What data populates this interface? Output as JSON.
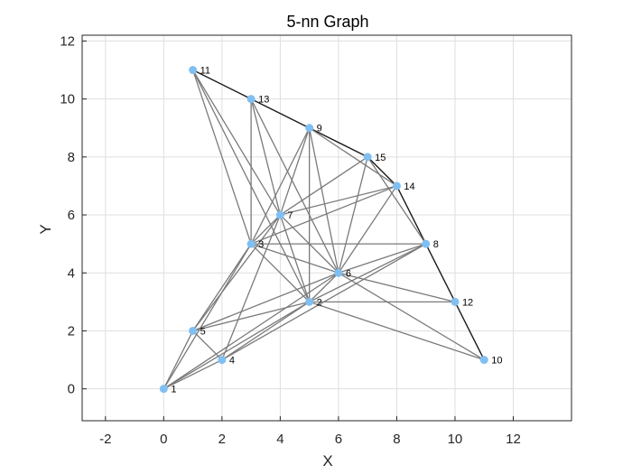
{
  "chart_data": {
    "type": "graph",
    "title": "5-nn Graph",
    "xlabel": "X",
    "ylabel": "Y",
    "xlim": [
      -2.8,
      14
    ],
    "ylim": [
      -1.1,
      12.2
    ],
    "xticks": [
      -2,
      0,
      2,
      4,
      6,
      8,
      10,
      12
    ],
    "yticks": [
      0,
      2,
      4,
      6,
      8,
      10,
      12
    ],
    "grid": true,
    "colors": {
      "node": "#80bff2",
      "edge": "#7a7a7a",
      "hull_edge": "#1a1a1a",
      "grid": "#dfdfdf",
      "frame": "#262626"
    },
    "nodes": [
      {
        "id": "1",
        "x": 0,
        "y": 0
      },
      {
        "id": "2",
        "x": 5,
        "y": 3
      },
      {
        "id": "3",
        "x": 3,
        "y": 5
      },
      {
        "id": "4",
        "x": 2,
        "y": 1
      },
      {
        "id": "5",
        "x": 1,
        "y": 2
      },
      {
        "id": "6",
        "x": 6,
        "y": 4
      },
      {
        "id": "7",
        "x": 4,
        "y": 6
      },
      {
        "id": "8",
        "x": 9,
        "y": 5
      },
      {
        "id": "9",
        "x": 5,
        "y": 9
      },
      {
        "id": "10",
        "x": 11,
        "y": 1
      },
      {
        "id": "11",
        "x": 1,
        "y": 11
      },
      {
        "id": "12",
        "x": 10,
        "y": 3
      },
      {
        "id": "13",
        "x": 3,
        "y": 10
      },
      {
        "id": "14",
        "x": 8,
        "y": 7
      },
      {
        "id": "15",
        "x": 7,
        "y": 8
      }
    ],
    "edges": [
      [
        "11",
        "13",
        "hull"
      ],
      [
        "13",
        "9",
        "hull"
      ],
      [
        "9",
        "15",
        "hull"
      ],
      [
        "15",
        "14",
        "hull"
      ],
      [
        "14",
        "8",
        "hull"
      ],
      [
        "8",
        "12",
        "hull"
      ],
      [
        "12",
        "10",
        "hull"
      ],
      [
        "11",
        "3"
      ],
      [
        "11",
        "7"
      ],
      [
        "11",
        "2"
      ],
      [
        "13",
        "3"
      ],
      [
        "13",
        "7"
      ],
      [
        "13",
        "6"
      ],
      [
        "9",
        "3"
      ],
      [
        "9",
        "7"
      ],
      [
        "9",
        "2"
      ],
      [
        "9",
        "6"
      ],
      [
        "9",
        "14"
      ],
      [
        "15",
        "7"
      ],
      [
        "15",
        "6"
      ],
      [
        "15",
        "8"
      ],
      [
        "14",
        "7"
      ],
      [
        "14",
        "6"
      ],
      [
        "14",
        "3"
      ],
      [
        "7",
        "3"
      ],
      [
        "7",
        "6"
      ],
      [
        "7",
        "2"
      ],
      [
        "7",
        "4"
      ],
      [
        "7",
        "5"
      ],
      [
        "3",
        "1"
      ],
      [
        "3",
        "5"
      ],
      [
        "3",
        "2"
      ],
      [
        "3",
        "6"
      ],
      [
        "6",
        "2"
      ],
      [
        "6",
        "8"
      ],
      [
        "6",
        "12"
      ],
      [
        "6",
        "10"
      ],
      [
        "6",
        "5"
      ],
      [
        "6",
        "1"
      ],
      [
        "2",
        "1"
      ],
      [
        "2",
        "4"
      ],
      [
        "2",
        "12"
      ],
      [
        "2",
        "10"
      ],
      [
        "2",
        "5"
      ],
      [
        "2",
        "8"
      ],
      [
        "5",
        "1"
      ],
      [
        "5",
        "4"
      ],
      [
        "4",
        "1"
      ],
      [
        "8",
        "3"
      ],
      [
        "8",
        "4"
      ]
    ]
  }
}
